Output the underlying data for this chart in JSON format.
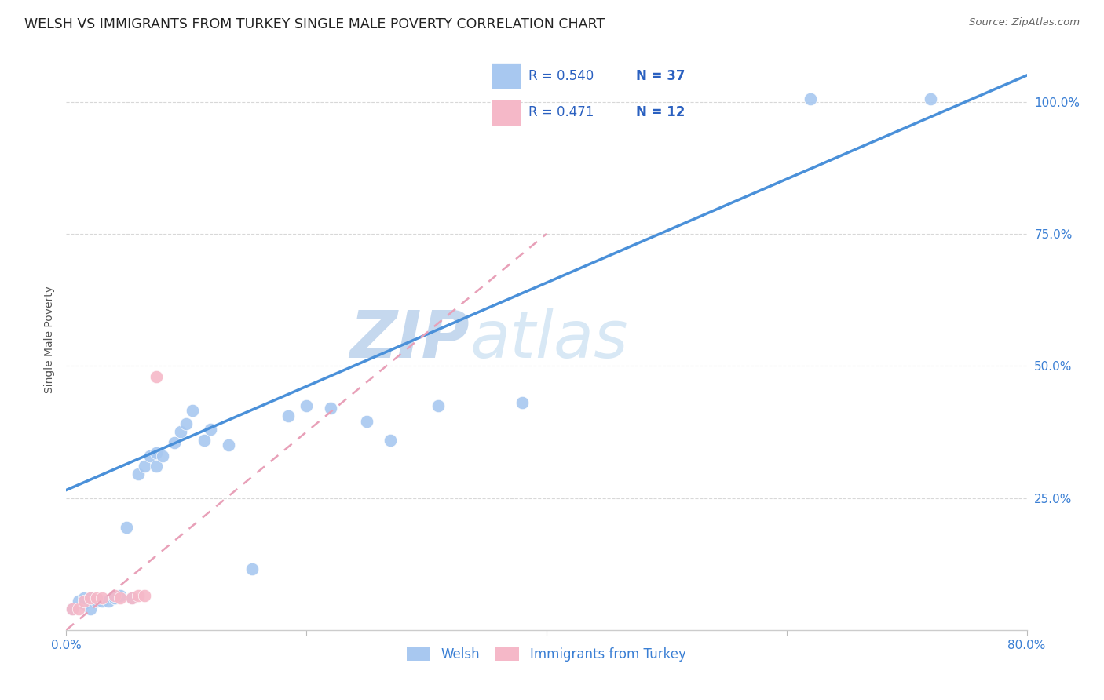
{
  "title": "WELSH VS IMMIGRANTS FROM TURKEY SINGLE MALE POVERTY CORRELATION CHART",
  "source": "Source: ZipAtlas.com",
  "ylabel": "Single Male Poverty",
  "ytick_labels": [
    "100.0%",
    "75.0%",
    "50.0%",
    "25.0%"
  ],
  "ytick_values": [
    1.0,
    0.75,
    0.5,
    0.25
  ],
  "xlim": [
    0.0,
    0.8
  ],
  "ylim": [
    0.0,
    1.1
  ],
  "welsh_R": 0.54,
  "welsh_N": 37,
  "turkey_R": 0.471,
  "turkey_N": 12,
  "welsh_color": "#a8c8f0",
  "turkey_color": "#f5b8c8",
  "regression_welsh_color": "#4a90d9",
  "regression_turkey_color": "#e8a0b8",
  "welsh_x": [
    0.005,
    0.01,
    0.015,
    0.015,
    0.02,
    0.02,
    0.025,
    0.03,
    0.035,
    0.04,
    0.04,
    0.045,
    0.05,
    0.055,
    0.06,
    0.065,
    0.07,
    0.075,
    0.075,
    0.08,
    0.09,
    0.095,
    0.1,
    0.105,
    0.115,
    0.12,
    0.135,
    0.155,
    0.185,
    0.2,
    0.22,
    0.25,
    0.27,
    0.31,
    0.38,
    0.62,
    0.72
  ],
  "welsh_y": [
    0.04,
    0.055,
    0.05,
    0.06,
    0.06,
    0.04,
    0.055,
    0.055,
    0.055,
    0.06,
    0.06,
    0.065,
    0.195,
    0.06,
    0.295,
    0.31,
    0.33,
    0.31,
    0.335,
    0.33,
    0.355,
    0.375,
    0.39,
    0.415,
    0.36,
    0.38,
    0.35,
    0.115,
    0.405,
    0.425,
    0.42,
    0.395,
    0.36,
    0.425,
    0.43,
    1.005,
    1.005
  ],
  "turkey_x": [
    0.005,
    0.01,
    0.015,
    0.02,
    0.025,
    0.03,
    0.04,
    0.045,
    0.055,
    0.06,
    0.065,
    0.075
  ],
  "turkey_y": [
    0.04,
    0.04,
    0.055,
    0.06,
    0.06,
    0.06,
    0.065,
    0.06,
    0.06,
    0.065,
    0.065,
    0.48
  ],
  "regression_welsh_x0": 0.0,
  "regression_welsh_y0": 0.265,
  "regression_welsh_x1": 0.8,
  "regression_welsh_y1": 1.05,
  "regression_turkey_x0": 0.0,
  "regression_turkey_y0": 0.0,
  "regression_turkey_x1": 0.4,
  "regression_turkey_y1": 0.75,
  "background_color": "#ffffff",
  "grid_color": "#d8d8d8",
  "watermark_zip_color": "#ccddf5",
  "watermark_atlas_color": "#ddeeff",
  "legend_R_color": "#2a60c0",
  "legend_N_color": "#2a60c0",
  "title_fontsize": 12.5,
  "axis_label_fontsize": 10,
  "tick_fontsize": 11,
  "legend_fontsize": 12
}
